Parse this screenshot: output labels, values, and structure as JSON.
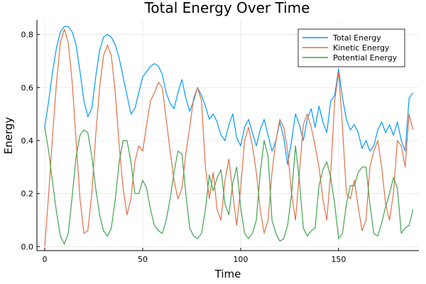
{
  "chart_data": {
    "type": "line",
    "title": "Total Energy Over Time",
    "xlabel": "Time",
    "ylabel": "Energy",
    "xlim": [
      -4,
      191
    ],
    "ylim": [
      -0.015,
      0.855
    ],
    "xticks": [
      0,
      50,
      100,
      150
    ],
    "yticks": [
      0.0,
      0.2,
      0.4,
      0.6,
      0.8
    ],
    "xtick_labels": [
      "0",
      "50",
      "100",
      "150"
    ],
    "ytick_labels": [
      "0.0",
      "0.2",
      "0.4",
      "0.6",
      "0.8"
    ],
    "grid": true,
    "legend_position": "top-right",
    "x": [
      0,
      2,
      4,
      6,
      8,
      10,
      12,
      14,
      16,
      18,
      20,
      22,
      24,
      26,
      28,
      30,
      32,
      34,
      36,
      38,
      40,
      42,
      44,
      46,
      48,
      50,
      52,
      54,
      56,
      58,
      60,
      62,
      64,
      66,
      68,
      70,
      72,
      74,
      76,
      78,
      80,
      82,
      84,
      86,
      88,
      90,
      92,
      94,
      96,
      98,
      100,
      102,
      104,
      106,
      108,
      110,
      112,
      114,
      116,
      118,
      120,
      122,
      124,
      126,
      128,
      130,
      132,
      134,
      136,
      138,
      140,
      142,
      144,
      146,
      148,
      150,
      152,
      154,
      156,
      158,
      160,
      162,
      164,
      166,
      168,
      170,
      172,
      174,
      176,
      178,
      180,
      182,
      184,
      186,
      188
    ],
    "series": [
      {
        "name": "Total Energy",
        "color": "#009AFA",
        "values": [
          0.45,
          0.55,
          0.66,
          0.75,
          0.81,
          0.83,
          0.83,
          0.81,
          0.76,
          0.66,
          0.55,
          0.49,
          0.52,
          0.64,
          0.74,
          0.79,
          0.8,
          0.79,
          0.76,
          0.71,
          0.64,
          0.57,
          0.5,
          0.52,
          0.58,
          0.64,
          0.66,
          0.68,
          0.69,
          0.68,
          0.65,
          0.58,
          0.54,
          0.52,
          0.58,
          0.63,
          0.56,
          0.51,
          0.55,
          0.6,
          0.57,
          0.53,
          0.48,
          0.5,
          0.47,
          0.42,
          0.4,
          0.46,
          0.5,
          0.41,
          0.38,
          0.45,
          0.48,
          0.43,
          0.38,
          0.44,
          0.48,
          0.42,
          0.36,
          0.4,
          0.47,
          0.41,
          0.31,
          0.4,
          0.5,
          0.46,
          0.4,
          0.48,
          0.52,
          0.45,
          0.53,
          0.47,
          0.43,
          0.55,
          0.57,
          0.67,
          0.56,
          0.48,
          0.44,
          0.46,
          0.43,
          0.37,
          0.4,
          0.36,
          0.38,
          0.44,
          0.47,
          0.43,
          0.46,
          0.42,
          0.47,
          0.4,
          0.36,
          0.56,
          0.58
        ]
      },
      {
        "name": "Kinetic Energy",
        "color": "#E26F46",
        "values": [
          0.0,
          0.2,
          0.42,
          0.62,
          0.77,
          0.82,
          0.77,
          0.62,
          0.4,
          0.18,
          0.05,
          0.06,
          0.2,
          0.42,
          0.6,
          0.72,
          0.76,
          0.72,
          0.58,
          0.38,
          0.22,
          0.12,
          0.18,
          0.32,
          0.38,
          0.36,
          0.46,
          0.55,
          0.58,
          0.62,
          0.6,
          0.48,
          0.36,
          0.25,
          0.18,
          0.22,
          0.35,
          0.45,
          0.56,
          0.6,
          0.55,
          0.3,
          0.18,
          0.28,
          0.14,
          0.1,
          0.25,
          0.33,
          0.2,
          0.08,
          0.22,
          0.4,
          0.45,
          0.38,
          0.28,
          0.14,
          0.05,
          0.1,
          0.28,
          0.4,
          0.48,
          0.45,
          0.36,
          0.2,
          0.1,
          0.28,
          0.46,
          0.5,
          0.45,
          0.38,
          0.3,
          0.18,
          0.1,
          0.28,
          0.55,
          0.66,
          0.45,
          0.2,
          0.18,
          0.25,
          0.15,
          0.06,
          0.1,
          0.3,
          0.36,
          0.4,
          0.3,
          0.16,
          0.1,
          0.2,
          0.4,
          0.38,
          0.3,
          0.5,
          0.44
        ]
      },
      {
        "name": "Potential Energy",
        "color": "#3EA44E",
        "values": [
          0.45,
          0.36,
          0.24,
          0.13,
          0.04,
          0.01,
          0.05,
          0.19,
          0.34,
          0.42,
          0.44,
          0.43,
          0.34,
          0.22,
          0.12,
          0.06,
          0.04,
          0.07,
          0.18,
          0.32,
          0.4,
          0.4,
          0.32,
          0.2,
          0.2,
          0.25,
          0.22,
          0.14,
          0.08,
          0.06,
          0.05,
          0.1,
          0.18,
          0.28,
          0.36,
          0.35,
          0.2,
          0.07,
          0.04,
          0.03,
          0.05,
          0.14,
          0.27,
          0.21,
          0.26,
          0.29,
          0.16,
          0.12,
          0.24,
          0.3,
          0.15,
          0.05,
          0.03,
          0.05,
          0.1,
          0.28,
          0.4,
          0.34,
          0.1,
          0.05,
          0.02,
          0.03,
          0.08,
          0.2,
          0.38,
          0.25,
          0.07,
          0.04,
          0.06,
          0.07,
          0.23,
          0.29,
          0.32,
          0.26,
          0.16,
          0.03,
          0.05,
          0.16,
          0.23,
          0.23,
          0.28,
          0.3,
          0.3,
          0.16,
          0.05,
          0.04,
          0.09,
          0.15,
          0.2,
          0.26,
          0.22,
          0.05,
          0.07,
          0.08,
          0.14
        ]
      }
    ]
  }
}
